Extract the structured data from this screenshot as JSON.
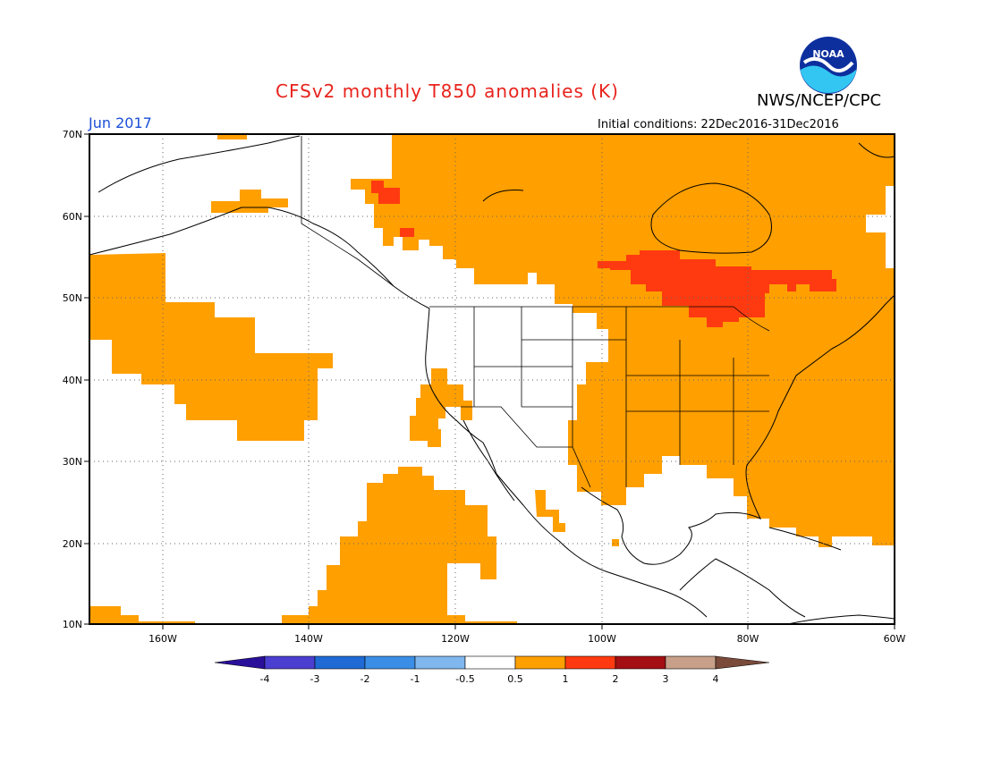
{
  "header": {
    "title": "CFSv2 monthly T850 anomalies (K)",
    "agency": "NWS/NCEP/CPC",
    "period": "Jun 2017",
    "init": "Initial conditions: 22Dec2016-31Dec2016",
    "logo_text": "NOAA"
  },
  "axes": {
    "lat_labels": [
      "70N",
      "60N",
      "50N",
      "40N",
      "30N",
      "20N",
      "10N"
    ],
    "lon_labels": [
      "160W",
      "140W",
      "120W",
      "100W",
      "80W",
      "60W"
    ]
  },
  "colorbar": {
    "labels": [
      "-4",
      "-3",
      "-2",
      "-1",
      "-0.5",
      "0.5",
      "1",
      "2",
      "3",
      "4"
    ],
    "colors": [
      "#2a0f9a",
      "#4a3fd0",
      "#1f6ad4",
      "#3b8ee6",
      "#7fb7ee",
      "#ffffff",
      "#ff9f00",
      "#ff3a10",
      "#a30f12",
      "#c8a08a",
      "#7a4a3a"
    ]
  },
  "map_data": {
    "fill_colors": {
      "above_0.5": "#ff9f00",
      "above_1": "#ff3a10"
    },
    "regions": [
      "Eastern and central United States: 0.5 to 1 K",
      "Northern Canada: 0.5 to 1 K",
      "Ontario / Hudson Bay region: 1 to 2 K",
      "Northwestern Canada patches: 1 to 2 K",
      "North Pacific (Gulf of Alaska to Hawaii): 0.5 to 1 K",
      "Eastern Pacific off Mexico: 0.5 to 1 K"
    ]
  }
}
